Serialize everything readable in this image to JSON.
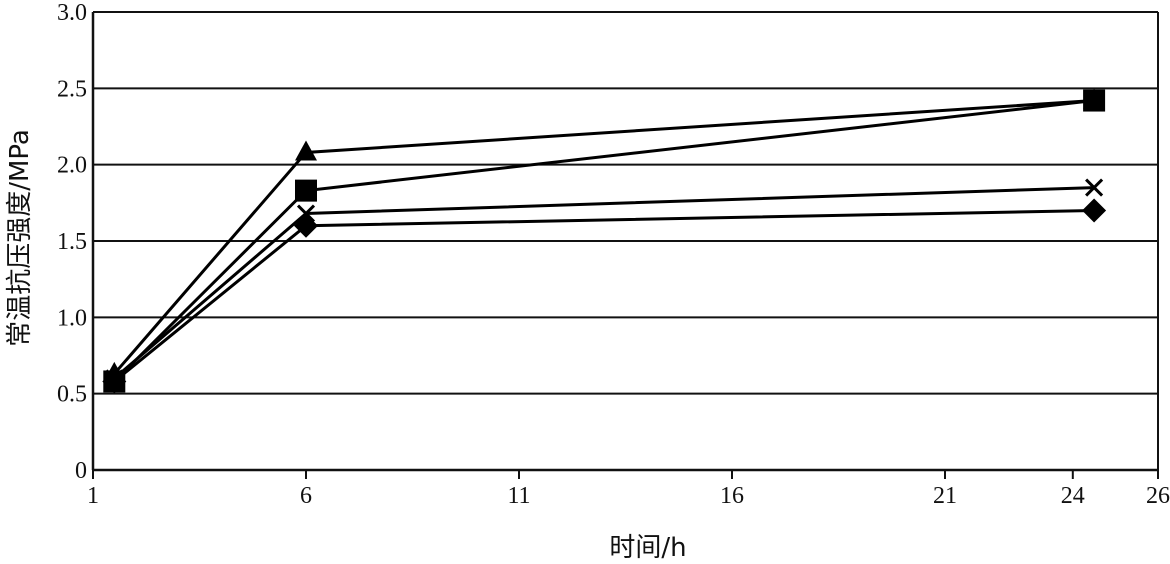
{
  "chart_data": {
    "type": "line",
    "title": "",
    "xlabel": "时间/h",
    "ylabel": "常温抗压强度/MPa",
    "x_ticks": [
      "1",
      "6",
      "11",
      "16",
      "21",
      "24",
      "26"
    ],
    "y_ticks": [
      "0",
      "0.5",
      "1.0",
      "1.5",
      "2.0",
      "2.5",
      "3.0"
    ],
    "xlim": [
      1,
      26
    ],
    "ylim": [
      0,
      3.0
    ],
    "grid": "horizontal",
    "series": [
      {
        "marker": "triangle",
        "x": [
          1.5,
          6,
          24.5
        ],
        "y": [
          0.63,
          2.08,
          2.42
        ]
      },
      {
        "marker": "square",
        "x": [
          1.5,
          6,
          24.5
        ],
        "y": [
          0.58,
          1.83,
          2.42
        ]
      },
      {
        "marker": "cross",
        "x": [
          1.5,
          6,
          24.5
        ],
        "y": [
          0.6,
          1.68,
          1.85
        ]
      },
      {
        "marker": "diamond",
        "x": [
          1.5,
          6,
          24.5
        ],
        "y": [
          0.58,
          1.6,
          1.7
        ]
      }
    ]
  }
}
